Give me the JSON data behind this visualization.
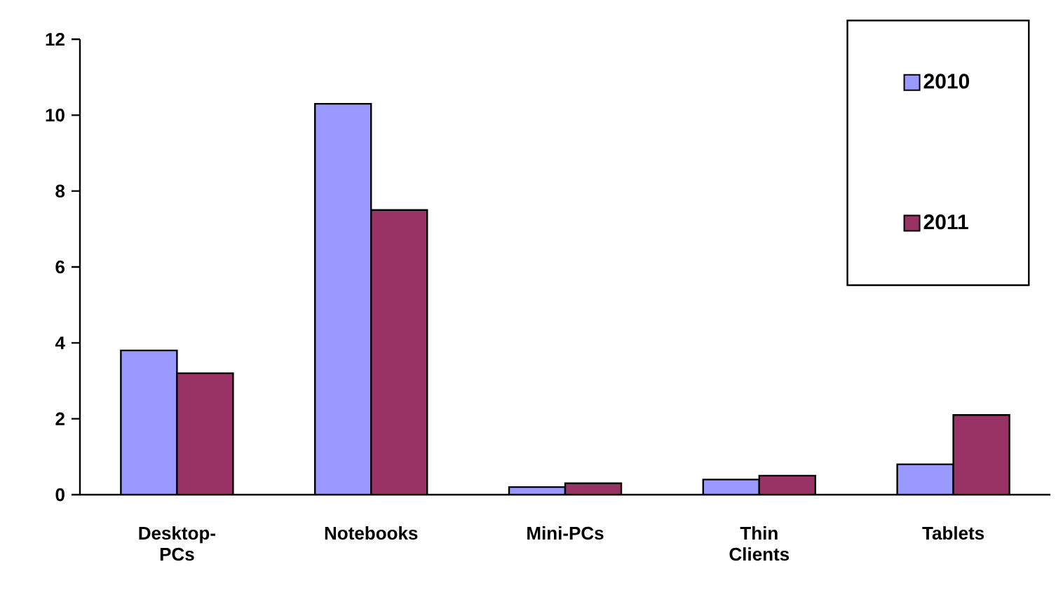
{
  "chart_data": {
    "type": "bar",
    "categories": [
      "Desktop-PCs",
      "Notebooks",
      "Mini-PCs",
      "Thin Clients",
      "Tablets"
    ],
    "series": [
      {
        "name": "2010",
        "color": "#9999ff",
        "values": [
          3.8,
          10.3,
          0.2,
          0.4,
          0.8
        ]
      },
      {
        "name": "2011",
        "color": "#993366",
        "values": [
          3.2,
          7.5,
          0.3,
          0.5,
          2.1
        ]
      }
    ],
    "ylim": [
      0,
      12
    ],
    "yticks": [
      0,
      2,
      4,
      6,
      8,
      10,
      12
    ],
    "legend": "top right"
  }
}
